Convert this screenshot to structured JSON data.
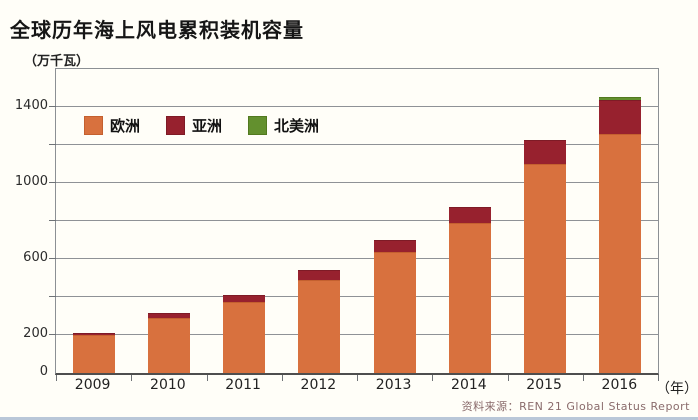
{
  "title": "全球历年海上风电累积装机容量",
  "unit_label": "（万千瓦）",
  "x_axis_suffix": "（年）",
  "source_note": "资料来源：REN 21 Global Status Report",
  "colors": {
    "europe": "#D8713E",
    "europe_border": "#C4602F",
    "asia": "#97212E",
    "asia_border": "#7E1B26",
    "north_america": "#63902E",
    "north_america_border": "#52791F",
    "gridline": "#8F9296",
    "axis_border": "#8C9094",
    "baseline": "#4E4E4E",
    "background": "#FFFEF8",
    "source_text": "#8A6B6B",
    "bottom_strip": "#B9C7D8"
  },
  "chart_data": {
    "type": "bar",
    "stacked": true,
    "title": "全球历年海上风电累积装机容量",
    "ylabel": "（万千瓦）",
    "xlabel": "（年）",
    "categories": [
      "2009",
      "2010",
      "2011",
      "2012",
      "2013",
      "2014",
      "2015",
      "2016"
    ],
    "series": [
      {
        "name": "欧洲",
        "key": "europe",
        "values": [
          200,
          290,
          375,
          490,
          635,
          790,
          1100,
          1260
        ]
      },
      {
        "name": "亚洲",
        "key": "asia",
        "values": [
          10,
          25,
          35,
          50,
          65,
          82,
          125,
          175
        ]
      },
      {
        "name": "北美洲",
        "key": "north_america",
        "values": [
          0,
          0,
          0,
          0,
          0,
          0,
          0,
          18
        ]
      }
    ],
    "totals": [
      210,
      315,
      410,
      540,
      700,
      872,
      1225,
      1453
    ],
    "ylim": [
      0,
      1600
    ],
    "grid_step": 200,
    "ytick_labels": [
      "0",
      "200",
      "600",
      "1000",
      "1400"
    ],
    "ytick_values": [
      0,
      200,
      600,
      1000,
      1400
    ],
    "grid": "horizontal",
    "legend_position": "top-left-inside"
  }
}
